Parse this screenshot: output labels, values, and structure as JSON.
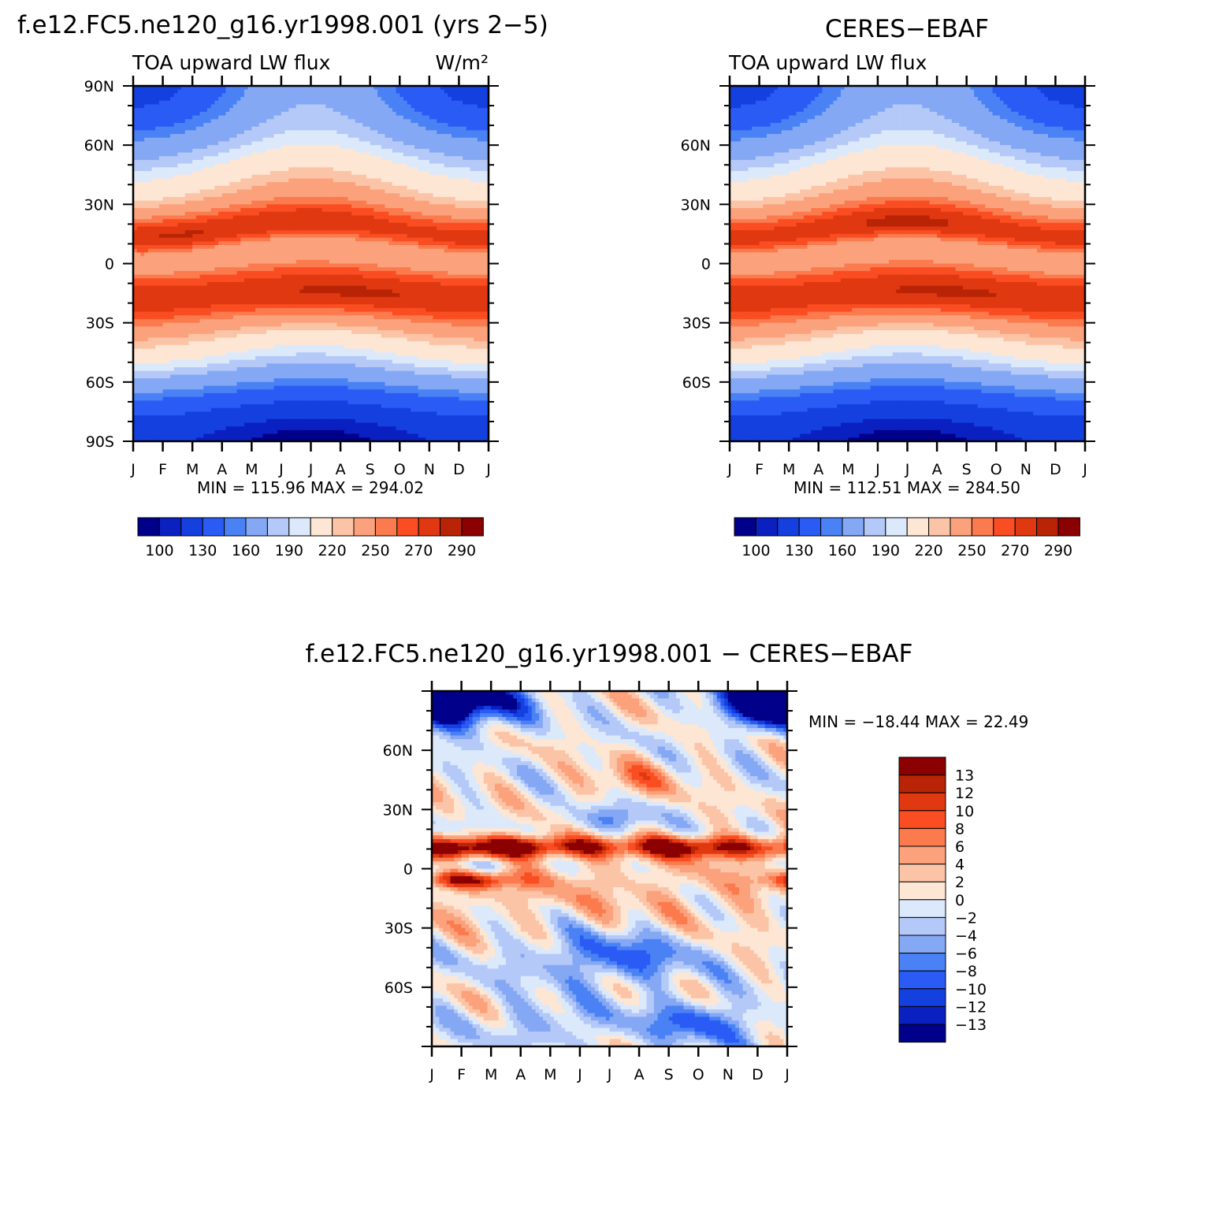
{
  "chart_data": [
    {
      "type": "heatmap",
      "title": "f.e12.FC5.ne120_g16.yr1998.001 (yrs 2−5)",
      "subtitle_left": "TOA upward LW flux",
      "subtitle_right": "W/m²",
      "stats": "MIN =  115.96 MAX =  294.02",
      "x": [
        "J",
        "F",
        "M",
        "A",
        "M",
        "J",
        "J",
        "A",
        "S",
        "O",
        "N",
        "D",
        "J"
      ],
      "y_ticks": [
        "90N",
        "60N",
        "30N",
        "0",
        "30S",
        "60S",
        "90S"
      ],
      "ylim": [
        -90,
        90
      ],
      "levels": [
        100,
        110,
        130,
        150,
        160,
        180,
        190,
        200,
        220,
        230,
        250,
        260,
        270,
        280,
        290
      ],
      "colorbar_labels": [
        "100",
        "130",
        "160",
        "190",
        "220",
        "250",
        "270",
        "290"
      ],
      "description_profile": "zonal-mean annual cycle; maxima near 15N (Feb, ~294) and 15S (Jul-Aug, ~285); minima at poles (~116)"
    },
    {
      "type": "heatmap",
      "title": "CERES−EBAF",
      "subtitle_left": "TOA upward LW flux",
      "stats": "MIN =  112.51  MAX =  284.50",
      "x": [
        "J",
        "F",
        "M",
        "A",
        "M",
        "J",
        "J",
        "A",
        "S",
        "O",
        "N",
        "D",
        "J"
      ],
      "y_ticks": [
        "60N",
        "30N",
        "0",
        "30S",
        "60S"
      ],
      "ylim": [
        -90,
        90
      ],
      "levels": [
        100,
        110,
        130,
        150,
        160,
        180,
        190,
        200,
        220,
        230,
        250,
        260,
        270,
        280,
        290
      ],
      "colorbar_labels": [
        "100",
        "130",
        "160",
        "190",
        "220",
        "250",
        "270",
        "290"
      ]
    },
    {
      "type": "heatmap",
      "title": "f.e12.FC5.ne120_g16.yr1998.001  −  CERES−EBAF",
      "stats": "MIN =  −18.44 MAX =   22.49",
      "x": [
        "J",
        "F",
        "M",
        "A",
        "M",
        "J",
        "J",
        "A",
        "S",
        "O",
        "N",
        "D",
        "J"
      ],
      "y_ticks": [
        "60N",
        "30N",
        "0",
        "30S",
        "60S"
      ],
      "ylim": [
        -90,
        90
      ],
      "levels": [
        -13,
        -12,
        -10,
        -8,
        -6,
        -4,
        -2,
        0,
        2,
        4,
        6,
        8,
        10,
        12,
        13
      ],
      "colorbar_labels": [
        "13",
        "12",
        "10",
        "8",
        "6",
        "4",
        "2",
        "0",
        "−2",
        "−4",
        "−6",
        "−8",
        "−10",
        "−12",
        "−13"
      ]
    }
  ],
  "colors": {
    "palette": [
      "#00008b",
      "#0a20c0",
      "#1540e0",
      "#2a5cf5",
      "#4a82f5",
      "#85a8f5",
      "#b4c9f8",
      "#dbe9fb",
      "#fde6d4",
      "#fcc4a6",
      "#fba27c",
      "#fb7a4e",
      "#fa4d22",
      "#e03810",
      "#b82405",
      "#8b0000"
    ]
  }
}
